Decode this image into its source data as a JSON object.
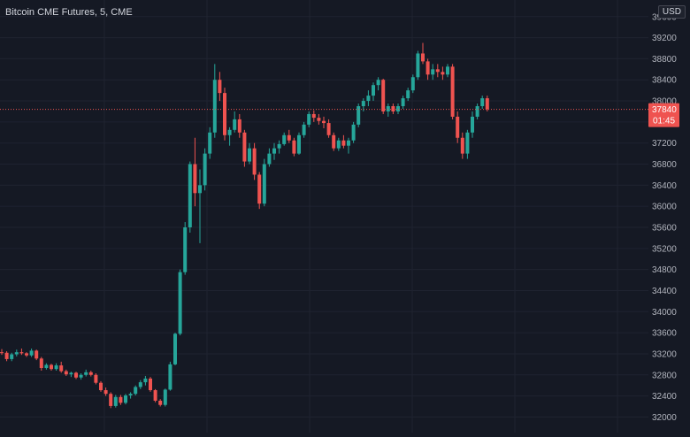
{
  "header": {
    "title": "Bitcoin CME Futures, 5, CME",
    "currency": "USD"
  },
  "price_tag": {
    "price": "37840",
    "countdown": "01:45"
  },
  "colors": {
    "background": "#151924",
    "up": "#26a69a",
    "down": "#ef5350",
    "grid": "#1f2330",
    "axis_text": "#b2b5be",
    "last_price_line": "#ef5350"
  },
  "chart_data": {
    "type": "candlestick",
    "yaxis": {
      "ylim": [
        31600,
        39800
      ],
      "ticks": [
        32000,
        32400,
        32800,
        33200,
        33600,
        34000,
        34400,
        34800,
        35200,
        35600,
        36000,
        36400,
        36800,
        37200,
        37600,
        38000,
        38400,
        38800,
        39200,
        39600
      ],
      "tick_labels": [
        "32000",
        "32400",
        "32800",
        "33200",
        "33600",
        "34000",
        "34400",
        "34800",
        "35200",
        "35600",
        "36000",
        "36400",
        "36800",
        "37200",
        "37600",
        "38000",
        "38400",
        "38800",
        "39200",
        "39600"
      ],
      "position": "right"
    },
    "grid": true,
    "last_price": 37840,
    "candles": [
      [
        33230,
        33290,
        33180,
        33220
      ],
      [
        33220,
        33250,
        33060,
        33100
      ],
      [
        33100,
        33220,
        33060,
        33190
      ],
      [
        33190,
        33280,
        33150,
        33230
      ],
      [
        33230,
        33300,
        33180,
        33210
      ],
      [
        33210,
        33230,
        33140,
        33170
      ],
      [
        33170,
        33300,
        33140,
        33260
      ],
      [
        33260,
        33280,
        33080,
        33110
      ],
      [
        33110,
        33140,
        32880,
        32930
      ],
      [
        32930,
        33020,
        32900,
        32990
      ],
      [
        32990,
        33010,
        32880,
        32910
      ],
      [
        32910,
        33020,
        32880,
        32980
      ],
      [
        32980,
        33050,
        32840,
        32870
      ],
      [
        32870,
        32900,
        32780,
        32810
      ],
      [
        32810,
        32860,
        32760,
        32840
      ],
      [
        32840,
        32860,
        32720,
        32750
      ],
      [
        32750,
        32830,
        32710,
        32800
      ],
      [
        32800,
        32900,
        32770,
        32850
      ],
      [
        32850,
        32880,
        32770,
        32800
      ],
      [
        32800,
        32830,
        32620,
        32650
      ],
      [
        32650,
        32680,
        32480,
        32510
      ],
      [
        32510,
        32560,
        32400,
        32440
      ],
      [
        32440,
        32470,
        32170,
        32210
      ],
      [
        32210,
        32420,
        32180,
        32380
      ],
      [
        32380,
        32420,
        32230,
        32270
      ],
      [
        32270,
        32440,
        32240,
        32410
      ],
      [
        32410,
        32470,
        32350,
        32440
      ],
      [
        32440,
        32600,
        32410,
        32570
      ],
      [
        32570,
        32700,
        32530,
        32660
      ],
      [
        32660,
        32780,
        32600,
        32730
      ],
      [
        32730,
        32760,
        32480,
        32510
      ],
      [
        32510,
        32530,
        32280,
        32310
      ],
      [
        32310,
        32340,
        32200,
        32230
      ],
      [
        32230,
        32540,
        32200,
        32520
      ],
      [
        32520,
        33050,
        32500,
        33000
      ],
      [
        33000,
        33600,
        32980,
        33580
      ],
      [
        33580,
        34800,
        33550,
        34750
      ],
      [
        34750,
        35700,
        34700,
        35600
      ],
      [
        35600,
        36850,
        35500,
        36800
      ],
      [
        36800,
        37300,
        36000,
        36250
      ],
      [
        36250,
        36700,
        35300,
        36400
      ],
      [
        36400,
        37100,
        36300,
        37000
      ],
      [
        37000,
        37500,
        36900,
        37400
      ],
      [
        37400,
        38700,
        37300,
        38400
      ],
      [
        38400,
        38550,
        38000,
        38150
      ],
      [
        38150,
        38250,
        37250,
        37350
      ],
      [
        37350,
        37500,
        37150,
        37450
      ],
      [
        37450,
        37800,
        37400,
        37650
      ],
      [
        37650,
        37750,
        37300,
        37400
      ],
      [
        37400,
        37450,
        36750,
        36850
      ],
      [
        36850,
        37200,
        36800,
        37100
      ],
      [
        37100,
        37200,
        36500,
        36600
      ],
      [
        36600,
        36650,
        35950,
        36050
      ],
      [
        36050,
        36900,
        36000,
        36800
      ],
      [
        36800,
        37100,
        36750,
        37000
      ],
      [
        37000,
        37200,
        36880,
        37100
      ],
      [
        37100,
        37250,
        37000,
        37180
      ],
      [
        37180,
        37400,
        37150,
        37350
      ],
      [
        37350,
        37450,
        37200,
        37250
      ],
      [
        37250,
        37300,
        36950,
        37000
      ],
      [
        37000,
        37400,
        36980,
        37350
      ],
      [
        37350,
        37600,
        37300,
        37550
      ],
      [
        37550,
        37800,
        37500,
        37750
      ],
      [
        37750,
        37820,
        37600,
        37680
      ],
      [
        37680,
        37750,
        37550,
        37620
      ],
      [
        37620,
        37700,
        37480,
        37580
      ],
      [
        37580,
        37650,
        37300,
        37350
      ],
      [
        37350,
        37400,
        37050,
        37100
      ],
      [
        37100,
        37300,
        37050,
        37250
      ],
      [
        37250,
        37350,
        37100,
        37150
      ],
      [
        37150,
        37300,
        37000,
        37250
      ],
      [
        37250,
        37600,
        37200,
        37550
      ],
      [
        37550,
        37950,
        37500,
        37900
      ],
      [
        37900,
        38050,
        37800,
        38000
      ],
      [
        38000,
        38200,
        37900,
        38100
      ],
      [
        38100,
        38350,
        38000,
        38300
      ],
      [
        38300,
        38450,
        38200,
        38400
      ],
      [
        38400,
        38420,
        37750,
        37800
      ],
      [
        37800,
        37950,
        37700,
        37900
      ],
      [
        37900,
        37950,
        37750,
        37800
      ],
      [
        37800,
        37950,
        37750,
        37900
      ],
      [
        37900,
        38100,
        37850,
        38050
      ],
      [
        38050,
        38250,
        38000,
        38200
      ],
      [
        38200,
        38500,
        38150,
        38450
      ],
      [
        38450,
        38950,
        38400,
        38900
      ],
      [
        38900,
        39100,
        38700,
        38750
      ],
      [
        38750,
        38800,
        38400,
        38500
      ],
      [
        38500,
        38700,
        38400,
        38600
      ],
      [
        38600,
        38700,
        38450,
        38550
      ],
      [
        38550,
        38650,
        38400,
        38500
      ],
      [
        38500,
        38700,
        38450,
        38650
      ],
      [
        38650,
        38700,
        37650,
        37700
      ],
      [
        37700,
        37800,
        37200,
        37300
      ],
      [
        37300,
        37400,
        36900,
        37000
      ],
      [
        37000,
        37450,
        36900,
        37400
      ],
      [
        37400,
        37800,
        37300,
        37700
      ],
      [
        37700,
        37950,
        37650,
        37900
      ],
      [
        37900,
        38100,
        37850,
        38050
      ],
      [
        38050,
        38100,
        37800,
        37840
      ]
    ]
  }
}
